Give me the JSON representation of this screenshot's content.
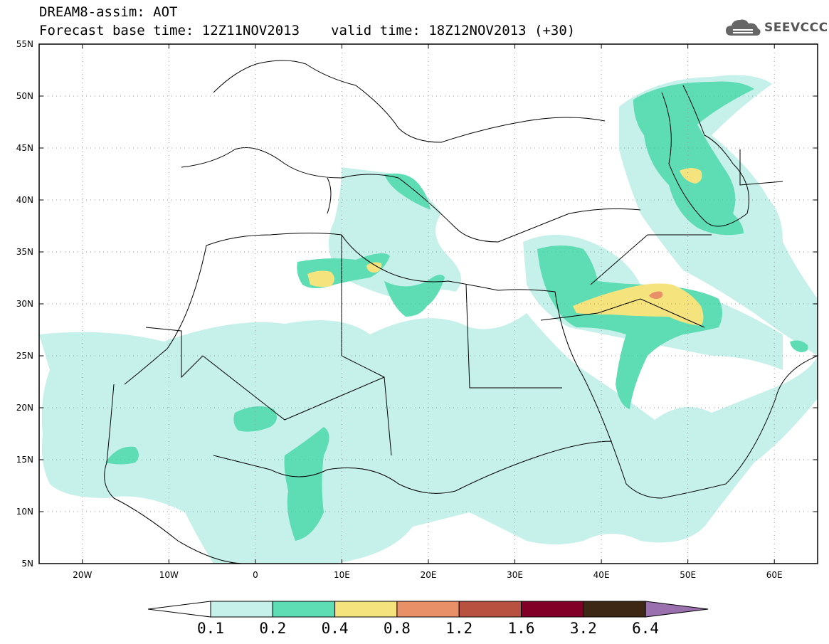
{
  "header": {
    "title": "DREAM8-assim: AOT",
    "base_time": "Forecast base time: 12Z11NOV2013",
    "valid_time": "valid time: 18Z12NOV2013 (+30)"
  },
  "logo": {
    "text": "SEEVCCC",
    "icon": "cloud-icon"
  },
  "map": {
    "lon_range": [
      -25,
      65
    ],
    "lat_range": [
      5,
      55
    ],
    "lat_ticks": [
      {
        "lat": 55,
        "label": "55N"
      },
      {
        "lat": 50,
        "label": "50N"
      },
      {
        "lat": 45,
        "label": "45N"
      },
      {
        "lat": 40,
        "label": "40N"
      },
      {
        "lat": 35,
        "label": "35N"
      },
      {
        "lat": 30,
        "label": "30N"
      },
      {
        "lat": 25,
        "label": "25N"
      },
      {
        "lat": 20,
        "label": "20N"
      },
      {
        "lat": 15,
        "label": "15N"
      },
      {
        "lat": 10,
        "label": "10N"
      },
      {
        "lat": 5,
        "label": "5N"
      }
    ],
    "lon_ticks": [
      {
        "lon": -20,
        "label": "20W"
      },
      {
        "lon": -10,
        "label": "10W"
      },
      {
        "lon": 0,
        "label": "0"
      },
      {
        "lon": 10,
        "label": "10E"
      },
      {
        "lon": 20,
        "label": "20E"
      },
      {
        "lon": 30,
        "label": "30E"
      },
      {
        "lon": 40,
        "label": "40E"
      },
      {
        "lon": 50,
        "label": "50E"
      },
      {
        "lon": 60,
        "label": "60E"
      }
    ]
  },
  "legend": {
    "colors": [
      "#c6f0ea",
      "#5edcb4",
      "#f5e47e",
      "#e89068",
      "#b85140",
      "#800028",
      "#3c2814",
      "#9a70ae"
    ],
    "labels": [
      "0.1",
      "0.2",
      "0.4",
      "0.8",
      "1.2",
      "1.6",
      "3.2",
      "6.4"
    ]
  }
}
